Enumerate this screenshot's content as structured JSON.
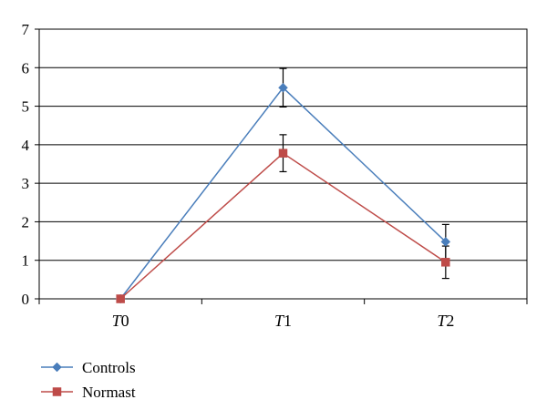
{
  "chart_data": {
    "type": "line",
    "categories": [
      {
        "letter": "T",
        "index": "0"
      },
      {
        "letter": "T",
        "index": "1"
      },
      {
        "letter": "T",
        "index": "2"
      }
    ],
    "ylim": [
      0,
      7
    ],
    "yticks": [
      "0",
      "1",
      "2",
      "3",
      "4",
      "5",
      "6",
      "7"
    ],
    "grid": true,
    "legend_position": "bottom-left",
    "series": [
      {
        "name": "Controls",
        "color": "#4a7ebb",
        "marker": "diamond",
        "values": [
          0,
          5.48,
          1.48
        ],
        "error": [
          0,
          0.5,
          0.45
        ]
      },
      {
        "name": "Normast",
        "color": "#be4b48",
        "marker": "square",
        "values": [
          0,
          3.78,
          0.95
        ],
        "error": [
          0,
          0.48,
          0.42
        ]
      }
    ]
  }
}
